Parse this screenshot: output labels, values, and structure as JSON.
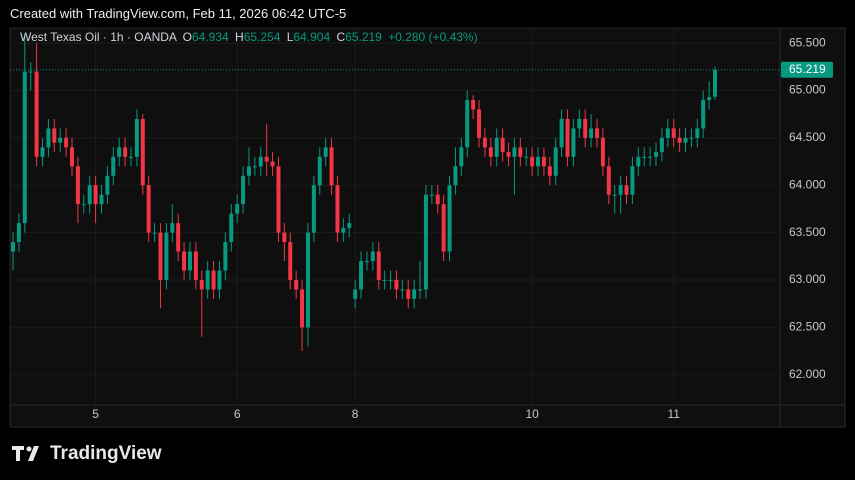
{
  "top_note": "Created with TradingView.com, Feb 11, 2026 06:42 UTC-5",
  "brand": "TradingView",
  "chart_data": {
    "type": "candlestick",
    "title": "West Texas Oil · 1h · OANDA",
    "ohlc_letters": [
      "O",
      "H",
      "L",
      "C"
    ],
    "change": "+0.280 (+0.43%)",
    "up_color": "#089981",
    "down_color": "#f23645",
    "grid": true,
    "ylim": [
      61.68,
      65.66
    ],
    "yticks": [
      {
        "value": 62,
        "label": "62.000"
      },
      {
        "value": 62.5,
        "label": "62.500"
      },
      {
        "value": 63,
        "label": "63.000"
      },
      {
        "value": 63.5,
        "label": "63.500"
      },
      {
        "value": 64,
        "label": "64.000"
      },
      {
        "value": 64.5,
        "label": "64.500"
      },
      {
        "value": 65,
        "label": "65.000"
      },
      {
        "value": 65.5,
        "label": "65.500"
      }
    ],
    "categories": [
      null,
      null,
      null,
      null,
      null,
      null,
      null,
      null,
      null,
      null,
      null,
      null,
      null,
      null,
      "5",
      null,
      null,
      null,
      null,
      null,
      null,
      null,
      null,
      null,
      null,
      null,
      null,
      null,
      null,
      null,
      null,
      null,
      null,
      null,
      null,
      null,
      null,
      null,
      "6",
      null,
      null,
      null,
      null,
      null,
      null,
      null,
      null,
      null,
      null,
      null,
      null,
      null,
      null,
      null,
      null,
      null,
      null,
      null,
      "8",
      null,
      null,
      null,
      null,
      null,
      null,
      null,
      null,
      null,
      null,
      null,
      null,
      null,
      null,
      null,
      null,
      null,
      null,
      null,
      null,
      null,
      null,
      null,
      null,
      null,
      null,
      null,
      null,
      null,
      "10",
      null,
      null,
      null,
      null,
      null,
      null,
      null,
      null,
      null,
      null,
      null,
      null,
      null,
      null,
      null,
      null,
      null,
      null,
      null,
      null,
      null,
      null,
      null,
      "11",
      null,
      null,
      null,
      null,
      null,
      null,
      null
    ],
    "open": [
      63.3,
      63.4,
      63.6,
      65.2,
      65.2,
      64.3,
      64.4,
      64.6,
      64.45,
      64.5,
      64.4,
      64.2,
      63.8,
      63.8,
      64.0,
      63.8,
      63.9,
      64.1,
      64.3,
      64.4,
      64.3,
      64.3,
      64.7,
      64.0,
      63.5,
      63.5,
      63.0,
      63.5,
      63.6,
      63.3,
      63.1,
      63.3,
      63.0,
      62.9,
      63.1,
      62.9,
      63.1,
      63.4,
      63.7,
      63.8,
      64.1,
      64.2,
      64.2,
      64.3,
      64.25,
      64.2,
      63.5,
      63.4,
      63.0,
      62.9,
      62.5,
      63.5,
      64.0,
      64.3,
      64.4,
      64.0,
      63.5,
      63.55,
      62.8,
      62.9,
      63.2,
      63.2,
      63.3,
      63.0,
      63.0,
      63.0,
      62.9,
      62.9,
      62.8,
      62.9,
      62.9,
      63.9,
      63.9,
      63.8,
      63.3,
      64.0,
      64.2,
      64.4,
      64.9,
      64.8,
      64.5,
      64.4,
      64.3,
      64.5,
      64.35,
      64.3,
      64.4,
      64.3,
      64.3,
      64.2,
      64.3,
      64.2,
      64.1,
      64.4,
      64.7,
      64.3,
      64.6,
      64.7,
      64.5,
      64.6,
      64.5,
      64.2,
      63.9,
      63.9,
      64.0,
      63.9,
      64.2,
      64.3,
      64.3,
      64.3,
      64.35,
      64.5,
      64.6,
      64.5,
      64.45,
      64.5,
      64.5,
      64.6,
      64.9,
      64.934
    ],
    "high": [
      63.5,
      63.7,
      65.6,
      65.3,
      65.5,
      64.5,
      64.7,
      64.7,
      64.6,
      64.6,
      64.5,
      64.3,
      63.9,
      64.1,
      64.1,
      64.0,
      64.2,
      64.4,
      64.5,
      64.5,
      64.4,
      64.8,
      64.75,
      64.1,
      63.6,
      63.6,
      63.6,
      63.8,
      63.7,
      63.4,
      63.4,
      63.4,
      63.1,
      63.2,
      63.2,
      63.2,
      63.5,
      63.8,
      63.9,
      64.2,
      64.4,
      64.3,
      64.4,
      64.65,
      64.35,
      64.3,
      63.6,
      63.5,
      63.1,
      63.0,
      63.6,
      64.1,
      64.4,
      64.5,
      64.5,
      64.1,
      63.65,
      63.7,
      63.0,
      63.3,
      63.3,
      63.4,
      63.4,
      63.1,
      63.1,
      63.1,
      63.0,
      63.0,
      63.0,
      63.2,
      64.0,
      64.0,
      64.0,
      63.9,
      64.1,
      64.4,
      64.5,
      65.0,
      64.95,
      64.9,
      64.6,
      64.5,
      64.6,
      64.6,
      64.45,
      64.5,
      64.5,
      64.4,
      64.4,
      64.4,
      64.4,
      64.3,
      64.5,
      64.8,
      64.8,
      64.7,
      64.8,
      64.8,
      64.75,
      64.7,
      64.6,
      64.3,
      64.0,
      64.1,
      64.1,
      64.3,
      64.4,
      64.4,
      64.4,
      64.45,
      64.6,
      64.7,
      64.7,
      64.6,
      64.6,
      64.6,
      64.7,
      65.0,
      65.1,
      65.254
    ],
    "low": [
      63.1,
      63.3,
      63.5,
      65.0,
      64.2,
      64.2,
      64.3,
      64.35,
      64.35,
      64.3,
      64.1,
      63.6,
      63.7,
      63.7,
      63.6,
      63.7,
      63.8,
      64.0,
      64.2,
      64.2,
      64.2,
      64.2,
      63.9,
      63.4,
      63.4,
      62.7,
      62.9,
      63.4,
      63.2,
      63.0,
      63.0,
      62.9,
      62.4,
      62.8,
      62.8,
      62.8,
      63.0,
      63.3,
      63.6,
      63.7,
      64.0,
      64.1,
      64.1,
      64.1,
      64.1,
      63.4,
      63.2,
      62.9,
      62.8,
      62.25,
      62.3,
      63.4,
      63.9,
      64.2,
      63.9,
      63.4,
      63.4,
      63.45,
      62.7,
      62.8,
      63.1,
      63.1,
      62.9,
      62.9,
      62.9,
      62.8,
      62.8,
      62.7,
      62.7,
      62.8,
      62.8,
      63.8,
      63.7,
      63.2,
      63.2,
      63.9,
      64.1,
      64.3,
      64.7,
      64.4,
      64.3,
      64.2,
      64.2,
      64.25,
      64.2,
      63.9,
      64.2,
      64.2,
      64.1,
      64.1,
      64.1,
      64.0,
      64.0,
      64.3,
      64.2,
      64.2,
      64.5,
      64.4,
      64.4,
      64.4,
      64.1,
      63.8,
      63.7,
      63.7,
      63.8,
      63.8,
      64.1,
      64.2,
      64.2,
      64.2,
      64.25,
      64.4,
      64.4,
      64.35,
      64.35,
      64.4,
      64.4,
      64.5,
      64.8,
      64.904
    ],
    "close": [
      63.4,
      63.6,
      65.2,
      65.2,
      64.3,
      64.4,
      64.6,
      64.45,
      64.5,
      64.4,
      64.2,
      63.8,
      63.8,
      64.0,
      63.8,
      63.9,
      64.1,
      64.3,
      64.4,
      64.3,
      64.3,
      64.7,
      64.0,
      63.5,
      63.5,
      63.0,
      63.5,
      63.6,
      63.3,
      63.1,
      63.3,
      63.0,
      62.9,
      63.1,
      62.9,
      63.1,
      63.4,
      63.7,
      63.8,
      64.1,
      64.2,
      64.2,
      64.3,
      64.25,
      64.2,
      63.5,
      63.4,
      63.0,
      62.9,
      62.5,
      63.5,
      64.0,
      64.3,
      64.4,
      64.0,
      63.5,
      63.55,
      63.6,
      62.9,
      63.2,
      63.2,
      63.3,
      63.0,
      63.0,
      63.0,
      62.9,
      62.9,
      62.8,
      62.9,
      62.9,
      63.9,
      63.9,
      63.8,
      63.3,
      64.0,
      64.2,
      64.4,
      64.9,
      64.8,
      64.5,
      64.4,
      64.3,
      64.5,
      64.35,
      64.3,
      64.4,
      64.3,
      64.3,
      64.2,
      64.3,
      64.2,
      64.1,
      64.4,
      64.7,
      64.3,
      64.6,
      64.7,
      64.5,
      64.6,
      64.5,
      64.2,
      63.9,
      63.9,
      64.0,
      63.9,
      64.2,
      64.3,
      64.3,
      64.3,
      64.35,
      64.5,
      64.6,
      64.5,
      64.45,
      64.5,
      64.5,
      64.6,
      64.9,
      64.93,
      65.219
    ]
  }
}
